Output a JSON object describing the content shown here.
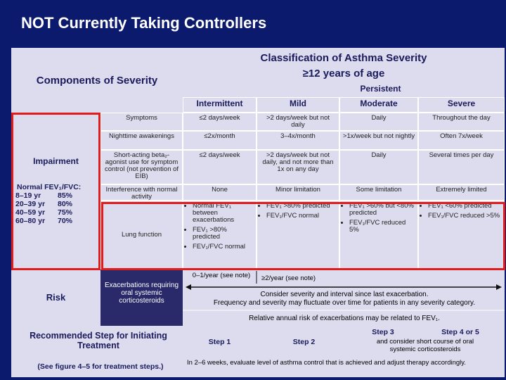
{
  "header": {
    "title": "NOT Currently Taking Controllers"
  },
  "table": {
    "title": "Classification of Asthma Severity",
    "subtitle": "≥12 years of age",
    "components": "Components of Severity",
    "persistent": "Persistent",
    "columns": [
      "Intermittent",
      "Mild",
      "Moderate",
      "Severe"
    ],
    "impairment": {
      "label": "Impairment",
      "fev_title": "Normal FEV₁/FVC:",
      "fev_rows": [
        [
          "8–19 yr",
          "85%"
        ],
        [
          "20–39 yr",
          "80%"
        ],
        [
          "40–59 yr",
          "75%"
        ],
        [
          "60–80 yr",
          "70%"
        ]
      ],
      "rows": [
        {
          "label": "Symptoms",
          "cells": [
            "≤2 days/week",
            ">2 days/week but not daily",
            "Daily",
            "Throughout the day"
          ]
        },
        {
          "label": "Nighttime awakenings",
          "cells": [
            "≤2x/month",
            "3–4x/month",
            ">1x/week but not nightly",
            "Often 7x/week"
          ]
        },
        {
          "label": "Short-acting beta₂-agonist use for symptom control (not prevention of EIB)",
          "cells": [
            "≤2 days/week",
            ">2 days/week but not daily, and not more than 1x on any day",
            "Daily",
            "Several times per day"
          ]
        },
        {
          "label": "Interference with normal activity",
          "cells": [
            "None",
            "Minor limitation",
            "Some limitation",
            "Extremely limited"
          ]
        }
      ],
      "lung": {
        "label": "Lung function",
        "cells": [
          [
            "Normal FEV₁ between exacerbations",
            "FEV₁ >80% predicted",
            "FEV₁/FVC normal"
          ],
          [
            "FEV₁ >80% predicted",
            "FEV₁/FVC normal"
          ],
          [
            "FEV₁ >60% but <80% predicted",
            "FEV₁/FVC reduced 5%"
          ],
          [
            "FEV₁ <60% predicted",
            "FEV₁/FVC reduced >5%"
          ]
        ]
      }
    },
    "risk": {
      "label": "Risk",
      "row_label": "Exacerbations requiring oral systemic corticosteroids",
      "intermittent": "0–1/year (see note)",
      "persistent": "≥2/year (see note)",
      "note1": "Consider severity and interval since last exacerbation.",
      "note2": "Frequency and severity may fluctuate over time for patients in any severity category.",
      "note3": "Relative annual risk of exacerbations may be related to FEV₁."
    },
    "treatment": {
      "label": "Recommended Step for Initiating Treatment",
      "note": "(See figure 4–5 for treatment steps.)",
      "steps": [
        "Step 1",
        "Step 2",
        "Step 3",
        "Step 4 or 5"
      ],
      "steroid_note": "and consider short course of oral systemic corticosteroids",
      "followup": "In 2–6 weeks, evaluate level of asthma control that is achieved and adjust therapy accordingly."
    }
  }
}
